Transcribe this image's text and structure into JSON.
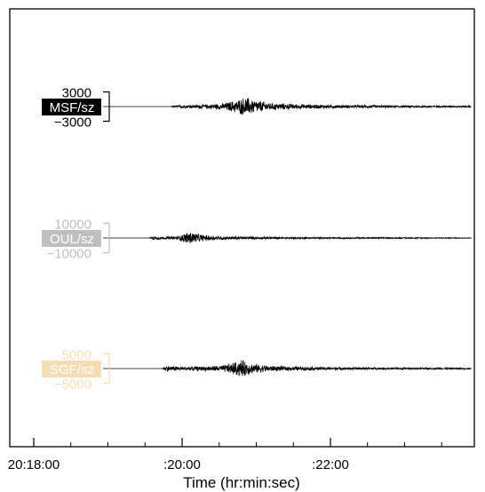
{
  "chart_data": {
    "type": "line",
    "title": "",
    "xlabel": "Time (hr:min:sec)",
    "ylabel": "",
    "x_ticks": [
      "20:18:00",
      ":20:00",
      ":22:00"
    ],
    "x_tick_minutes": [
      0,
      2,
      4
    ],
    "x_minor_tick_minutes": [
      0.5,
      1,
      1.5,
      2.5,
      3,
      3.5,
      4.5,
      5,
      5.5
    ],
    "x_range_minutes": [
      -0.35,
      5.9
    ],
    "grid": false,
    "legend": "none",
    "series": [
      {
        "name": "MSF/sz",
        "color": "#000000",
        "amp_high": "3000",
        "amp_low": "−3000",
        "amp_scale": 3000,
        "onset_minute": 1.85,
        "peak_minute": 2.85,
        "background_amplitude": 150,
        "envelope": [
          [
            -0.35,
            0
          ],
          [
            1.85,
            0
          ],
          [
            1.95,
            250
          ],
          [
            2.3,
            450
          ],
          [
            2.55,
            700
          ],
          [
            2.75,
            1500
          ],
          [
            2.85,
            2100
          ],
          [
            3.0,
            1400
          ],
          [
            3.2,
            800
          ],
          [
            3.6,
            500
          ],
          [
            4.2,
            300
          ],
          [
            5.0,
            200
          ],
          [
            5.9,
            120
          ]
        ]
      },
      {
        "name": "OUL/sz",
        "color": "#bfbfbf",
        "amp_high": "10000",
        "amp_low": "−10000",
        "amp_scale": 10000,
        "onset_minute": 1.58,
        "peak_minute": 2.1,
        "background_amplitude": 250,
        "envelope": [
          [
            -0.35,
            0
          ],
          [
            1.55,
            0
          ],
          [
            1.62,
            1400
          ],
          [
            1.75,
            1000
          ],
          [
            1.95,
            1300
          ],
          [
            2.05,
            4000
          ],
          [
            2.12,
            5000
          ],
          [
            2.25,
            2500
          ],
          [
            2.5,
            1400
          ],
          [
            3.0,
            900
          ],
          [
            3.5,
            600
          ],
          [
            4.5,
            400
          ],
          [
            5.9,
            250
          ]
        ]
      },
      {
        "name": "SGF/sz",
        "color": "#f5deb3",
        "amp_high": "5000",
        "amp_low": "−5000",
        "amp_scale": 5000,
        "onset_minute": 1.75,
        "peak_minute": 2.75,
        "background_amplitude": 150,
        "envelope": [
          [
            -0.35,
            0
          ],
          [
            1.72,
            0
          ],
          [
            1.8,
            1100
          ],
          [
            1.95,
            700
          ],
          [
            2.3,
            800
          ],
          [
            2.55,
            1200
          ],
          [
            2.7,
            2300
          ],
          [
            2.8,
            3300
          ],
          [
            2.95,
            1800
          ],
          [
            3.2,
            1000
          ],
          [
            3.6,
            700
          ],
          [
            4.2,
            450
          ],
          [
            5.0,
            300
          ],
          [
            5.9,
            220
          ]
        ]
      }
    ]
  }
}
